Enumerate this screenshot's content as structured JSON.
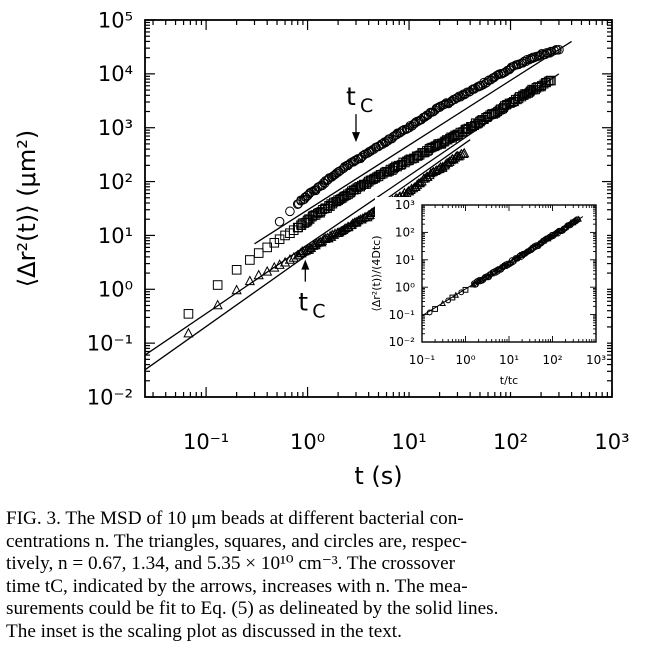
{
  "chart_data": [
    {
      "type": "scatter",
      "panel": "main",
      "scale": "log-log",
      "xlabel": "t  (s)",
      "ylabel": "⟨Δr²(t)⟩  (μm²)",
      "xlim": [
        0.025,
        1000
      ],
      "ylim": [
        0.01,
        100000
      ],
      "x_ticks": [
        "10⁻¹",
        "10⁰",
        "10¹",
        "10²",
        "10³"
      ],
      "y_ticks": [
        "10⁻²",
        "10⁻¹",
        "10⁰",
        "10¹",
        "10²",
        "10³",
        "10⁴",
        "10⁵"
      ],
      "grid": false,
      "legend": "none",
      "series": [
        {
          "marker": "triangle",
          "x": [
            0.067,
            0.13,
            0.2,
            0.27,
            0.33,
            0.4,
            0.47,
            0.53,
            0.6,
            0.67,
            0.73,
            0.8,
            0.87,
            0.93,
            1.0,
            1.2,
            1.5,
            2.0,
            2.5,
            3.0,
            4.0,
            5.0,
            6.5,
            8.0,
            10.0,
            12.0,
            15.0,
            20.0,
            25.0,
            30.0,
            35.0
          ],
          "y": [
            0.15,
            0.5,
            0.95,
            1.4,
            1.8,
            2.1,
            2.5,
            2.8,
            3.1,
            3.5,
            3.8,
            4.2,
            4.6,
            5.0,
            5.3,
            6.5,
            8.5,
            11.0,
            14.0,
            17.0,
            23.0,
            30.0,
            40.0,
            50.0,
            65.0,
            85.0,
            120.0,
            170.0,
            230.0,
            290.0,
            330.0
          ],
          "fit_line": {
            "x": [
              0.025,
              40
            ],
            "y": [
              0.032,
              600
            ]
          }
        },
        {
          "marker": "square",
          "x": [
            0.067,
            0.13,
            0.2,
            0.27,
            0.33,
            0.4,
            0.47,
            0.53,
            0.6,
            0.67,
            0.73,
            0.8,
            0.87,
            0.93,
            1.0,
            1.2,
            1.5,
            2.0,
            2.5,
            3.0,
            4.0,
            5.0,
            7.0,
            10.0,
            15.0,
            20.0,
            30.0,
            50.0,
            80.0,
            120.0,
            180.0,
            250.0
          ],
          "y": [
            0.35,
            1.2,
            2.3,
            3.5,
            4.7,
            6.0,
            7.3,
            8.5,
            10.0,
            11.0,
            12.5,
            14.0,
            15.5,
            17.0,
            19.0,
            24.0,
            32.0,
            45.0,
            58.0,
            72.0,
            100.0,
            125.0,
            175.0,
            250.0,
            370.0,
            500.0,
            750.0,
            1300.0,
            2200.0,
            3500.0,
            5500.0,
            7500.0
          ],
          "fit_line": {
            "x": [
              0.025,
              300
            ],
            "y": [
              0.06,
              10000
            ]
          }
        },
        {
          "marker": "circle",
          "x": [
            0.53,
            0.67,
            0.8,
            1.0,
            1.3,
            1.6,
            2.0,
            2.5,
            3.0,
            3.5,
            4.0,
            4.5,
            5.0,
            5.5,
            6.0,
            6.5,
            7.0,
            7.5,
            8.0,
            8.5,
            9.0,
            10.0,
            12.0,
            15.0,
            20.0,
            30.0,
            50.0,
            80.0,
            120.0,
            180.0,
            250.0,
            300.0
          ],
          "y": [
            18.0,
            28.0,
            38.0,
            55.0,
            80.0,
            110.0,
            150.0,
            200.0,
            250.0,
            300.0,
            350.0,
            400.0,
            450.0,
            500.0,
            560.0,
            620.0,
            680.0,
            740.0,
            800.0,
            860.0,
            920.0,
            1000.0,
            1300.0,
            1700.0,
            2400.0,
            3600.0,
            6000.0,
            10000.0,
            15000.0,
            21000.0,
            26000.0,
            28000.0
          ],
          "fit_line": {
            "x": [
              0.3,
              400
            ],
            "y": [
              7.0,
              40000
            ]
          }
        }
      ],
      "annotations": [
        {
          "text": "t",
          "sub": "C",
          "arrow": "down",
          "x": 3.0,
          "y": 250.0
        },
        {
          "text": "t",
          "sub": "C",
          "arrow": "up",
          "x": 0.95,
          "y": 5.0
        }
      ]
    },
    {
      "type": "scatter",
      "panel": "inset",
      "scale": "log-log",
      "xlabel": "t/tc",
      "ylabel": "⟨Δr²(t)⟩/(4Dtc)",
      "xlim": [
        0.1,
        1000
      ],
      "ylim": [
        0.01,
        1000
      ],
      "x_ticks": [
        "10⁻¹",
        "10⁰",
        "10¹",
        "10²",
        "10³"
      ],
      "y_ticks": [
        "10⁻²",
        "10⁻¹",
        "10⁰",
        "10¹",
        "10²",
        "10³"
      ],
      "grid": false,
      "legend": "none",
      "collapse": {
        "x": [
          0.15,
          0.2,
          0.3,
          0.4,
          0.5,
          0.6,
          0.8,
          1.0,
          1.5,
          2.0,
          3.0,
          4.0,
          6.0,
          8.0,
          10.0,
          15.0,
          20.0,
          30.0,
          50.0,
          80.0,
          120.0,
          200.0,
          300.0,
          400.0
        ],
        "y": [
          0.12,
          0.16,
          0.25,
          0.33,
          0.42,
          0.5,
          0.65,
          0.8,
          1.2,
          1.6,
          2.3,
          3.0,
          4.5,
          6.0,
          7.5,
          11.0,
          15.0,
          22.0,
          37.0,
          60.0,
          90.0,
          150.0,
          230.0,
          300.0
        ]
      },
      "fit_line": {
        "x": [
          0.1,
          500
        ],
        "y": [
          0.09,
          380
        ]
      }
    }
  ],
  "caption": {
    "lines": [
      "FIG. 3.   The MSD of 10 μm beads at different bacterial con-",
      "centrations n.  The triangles, squares, and circles are, respec-",
      "tively, n = 0.67, 1.34, and 5.35 × 10¹⁰ cm⁻³.  The crossover",
      "time tC, indicated by the arrows, increases with n.  The mea-",
      "surements could be fit to Eq. (5) as delineated by the solid lines.",
      "The inset is the scaling plot as discussed in the text."
    ]
  }
}
